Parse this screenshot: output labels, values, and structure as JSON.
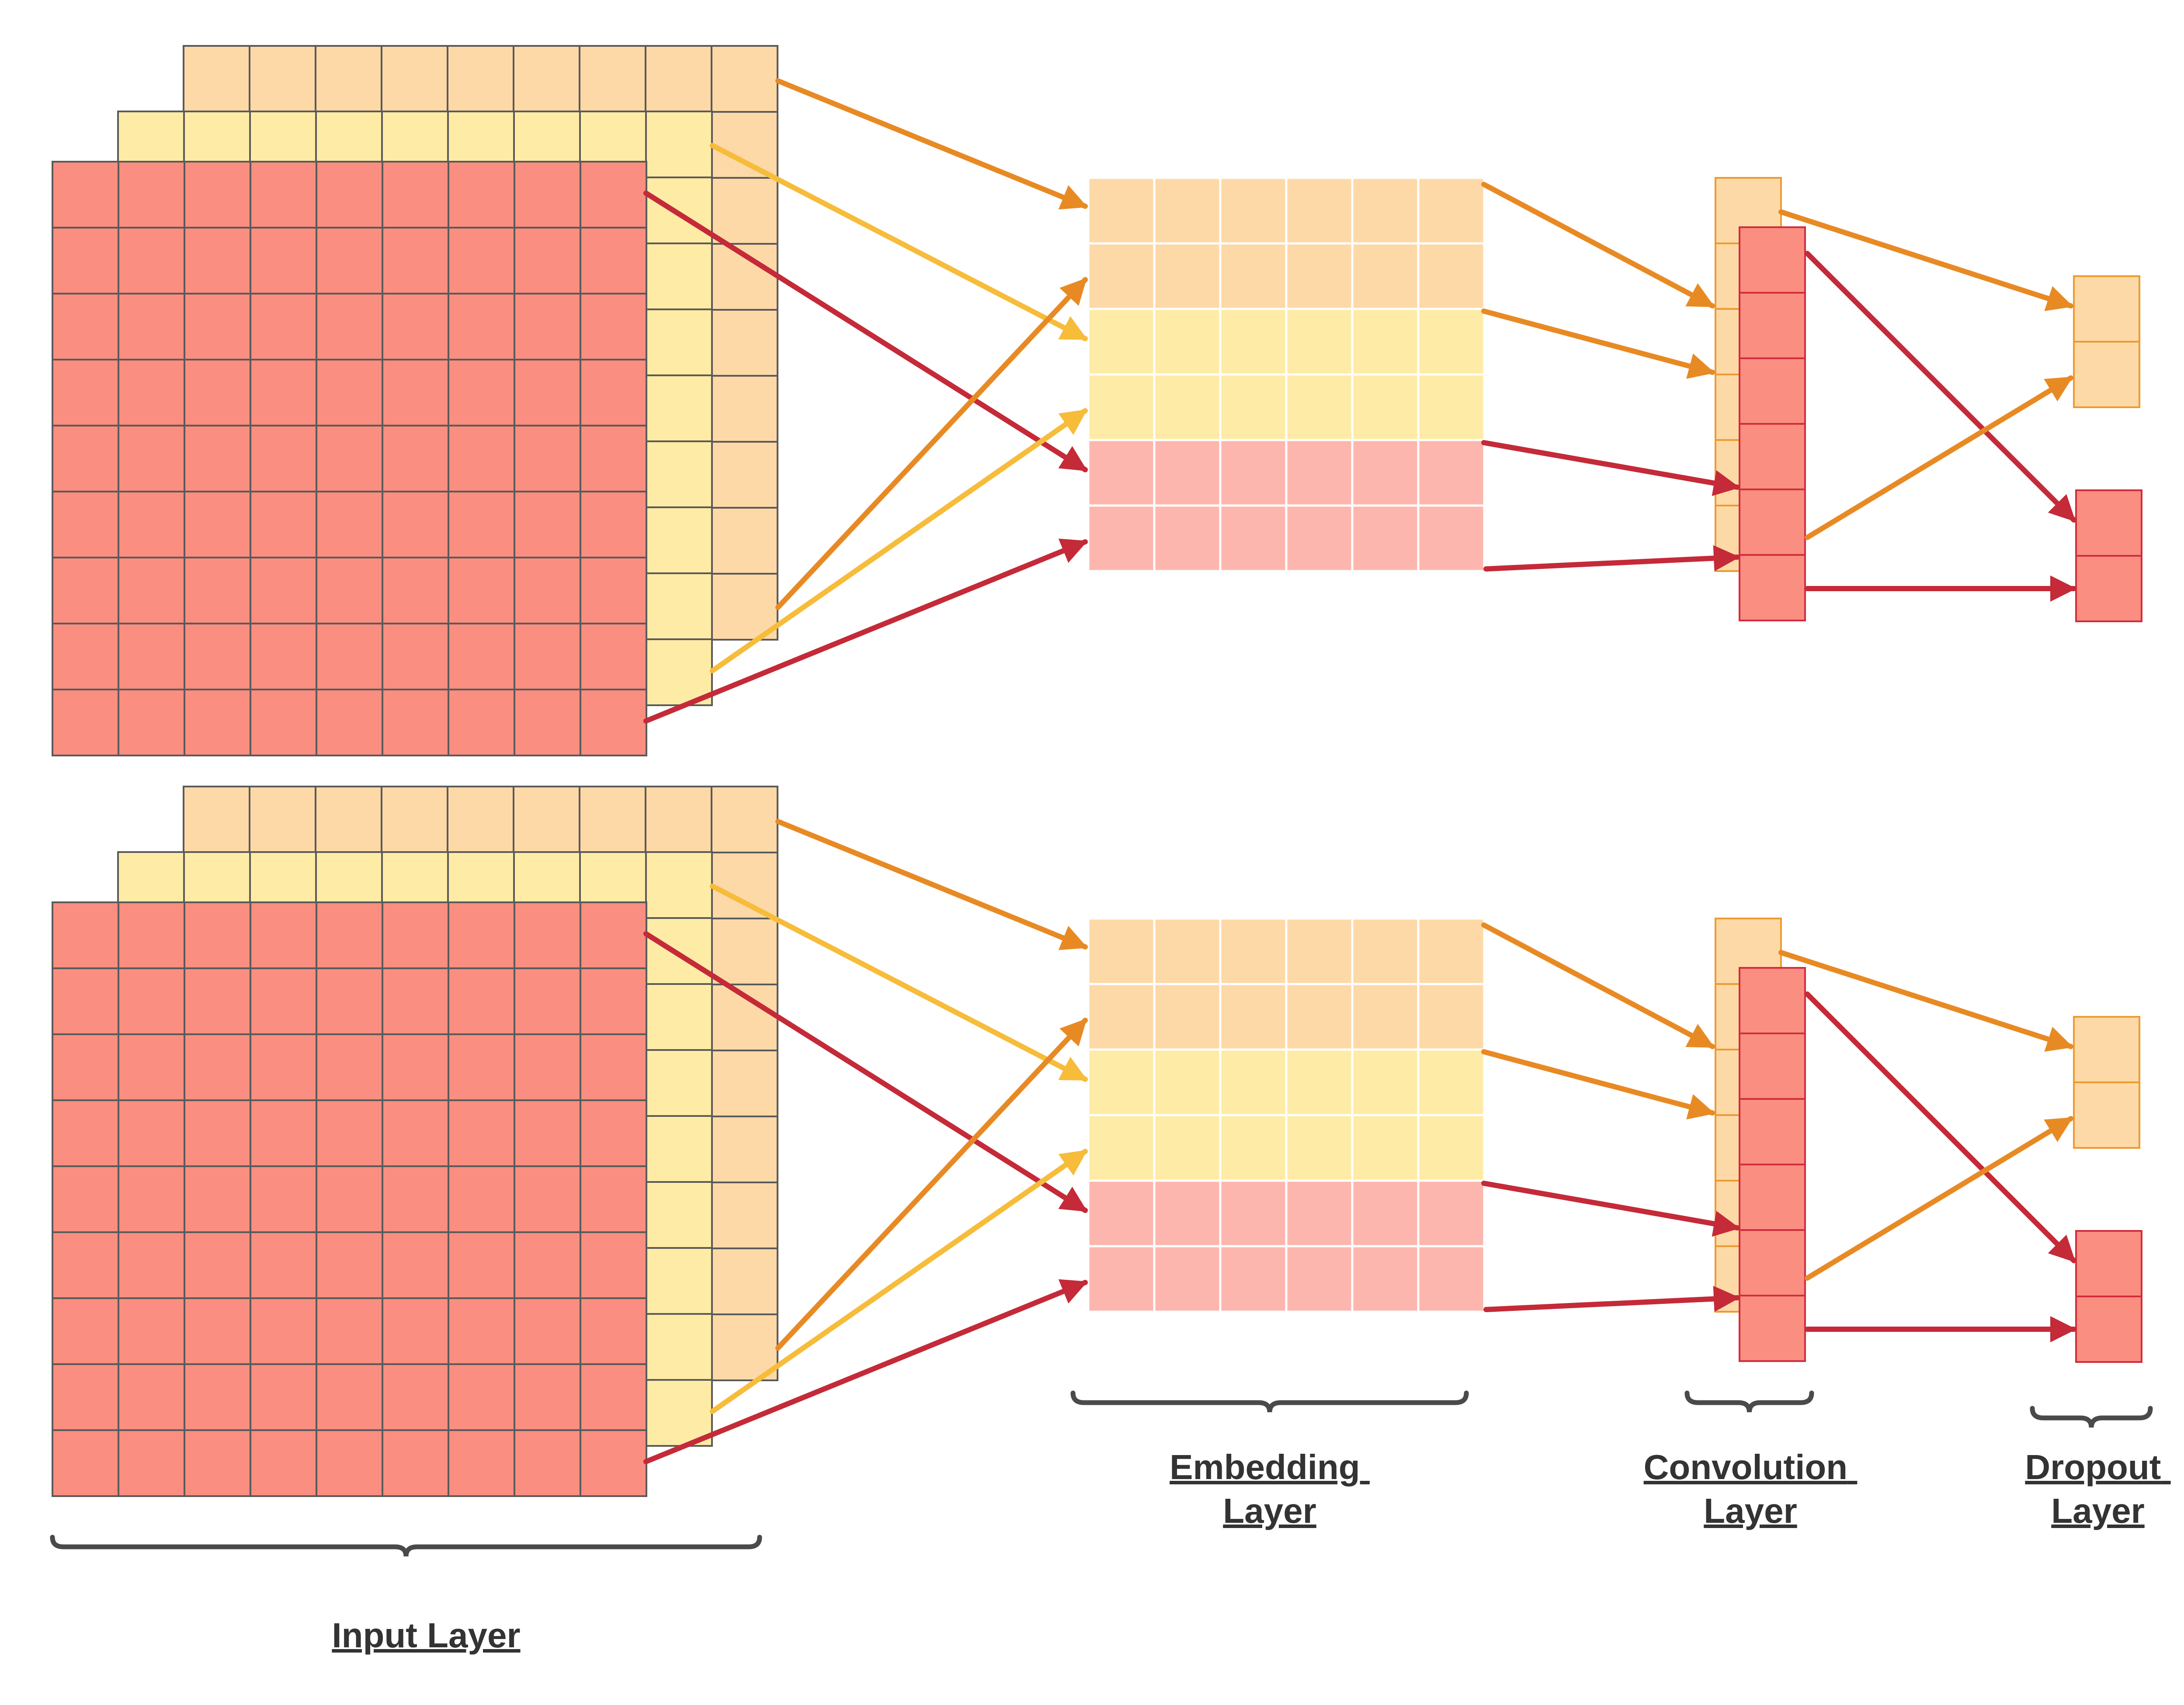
{
  "labels": {
    "input": "Input Layer",
    "embedding": [
      "Embedding",
      "Layer"
    ],
    "convolution": [
      "Convolution",
      "Layer"
    ],
    "dropout": [
      "Dropout",
      "Layer"
    ]
  },
  "colors": {
    "orange_fill": "#FDD9A7",
    "yellow_fill": "#FEEBA5",
    "red_fill": "#FA8E80",
    "pink_fill": "#FDB6AD",
    "grid_line": "#5A5A5A",
    "embed_line": "#FFFFFF",
    "orange_border": "#EE9A30",
    "red_border": "#D12D3D",
    "orange_arrow": "#E88A24",
    "yellow_arrow": "#F6BC3A",
    "red_arrow": "#C42A38",
    "brace": "#4A4A4A"
  },
  "structure": {
    "input_grid": {
      "rows": 9,
      "cols": 9,
      "channels": [
        "orange",
        "yellow",
        "red"
      ]
    },
    "embedding_grid": {
      "rows": 6,
      "cols": 6,
      "row_colors": [
        "orange",
        "orange",
        "yellow",
        "yellow",
        "pink",
        "pink"
      ]
    },
    "convolution": {
      "back_cells": 6,
      "front_cells": 6
    },
    "dropout": {
      "top_cells": 2,
      "bottom_cells": 2
    },
    "branches": 2
  }
}
